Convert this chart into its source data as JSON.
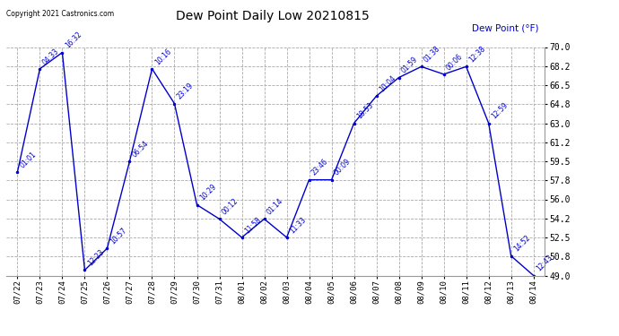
{
  "title": "Dew Point Daily Low 20210815",
  "ylabel": "Dew Point (°F)",
  "copyright": "Copyright 2021 Castronics.com",
  "line_color": "#0000cc",
  "background_color": "#ffffff",
  "grid_color": "#aaaaaa",
  "ylim": [
    49.0,
    70.0
  ],
  "yticks": [
    49.0,
    50.8,
    52.5,
    54.2,
    56.0,
    57.8,
    59.5,
    61.2,
    63.0,
    64.8,
    66.5,
    68.2,
    70.0
  ],
  "dates": [
    "07/22",
    "07/23",
    "07/24",
    "07/25",
    "07/26",
    "07/27",
    "07/28",
    "07/29",
    "07/30",
    "07/31",
    "08/01",
    "08/02",
    "08/03",
    "08/04",
    "08/05",
    "08/06",
    "08/07",
    "08/08",
    "08/09",
    "08/10",
    "08/11",
    "08/12",
    "08/13",
    "08/14"
  ],
  "values": [
    58.5,
    68.0,
    69.5,
    49.5,
    51.5,
    59.5,
    68.0,
    64.8,
    55.5,
    54.2,
    52.5,
    54.2,
    52.5,
    57.8,
    57.8,
    63.0,
    65.5,
    67.2,
    68.2,
    67.5,
    68.2,
    63.0,
    50.8,
    49.0
  ],
  "annotations": [
    {
      "idx": 0,
      "label": "01:01"
    },
    {
      "idx": 1,
      "label": "04:33"
    },
    {
      "idx": 2,
      "label": "16:32"
    },
    {
      "idx": 3,
      "label": "12:23"
    },
    {
      "idx": 4,
      "label": "10:57"
    },
    {
      "idx": 5,
      "label": "06:54"
    },
    {
      "idx": 6,
      "label": "10:16"
    },
    {
      "idx": 7,
      "label": "23:19"
    },
    {
      "idx": 8,
      "label": "10:29"
    },
    {
      "idx": 9,
      "label": "00:12"
    },
    {
      "idx": 10,
      "label": "11:58"
    },
    {
      "idx": 11,
      "label": "01:14"
    },
    {
      "idx": 12,
      "label": "11:33"
    },
    {
      "idx": 13,
      "label": "23:46"
    },
    {
      "idx": 14,
      "label": "00:09"
    },
    {
      "idx": 15,
      "label": "18:53"
    },
    {
      "idx": 16,
      "label": "10:04"
    },
    {
      "idx": 17,
      "label": "01:59"
    },
    {
      "idx": 18,
      "label": "01:38"
    },
    {
      "idx": 19,
      "label": "00:06"
    },
    {
      "idx": 20,
      "label": "12:38"
    },
    {
      "idx": 21,
      "label": "12:59"
    },
    {
      "idx": 22,
      "label": "14:52"
    },
    {
      "idx": 23,
      "label": "12:43"
    }
  ]
}
